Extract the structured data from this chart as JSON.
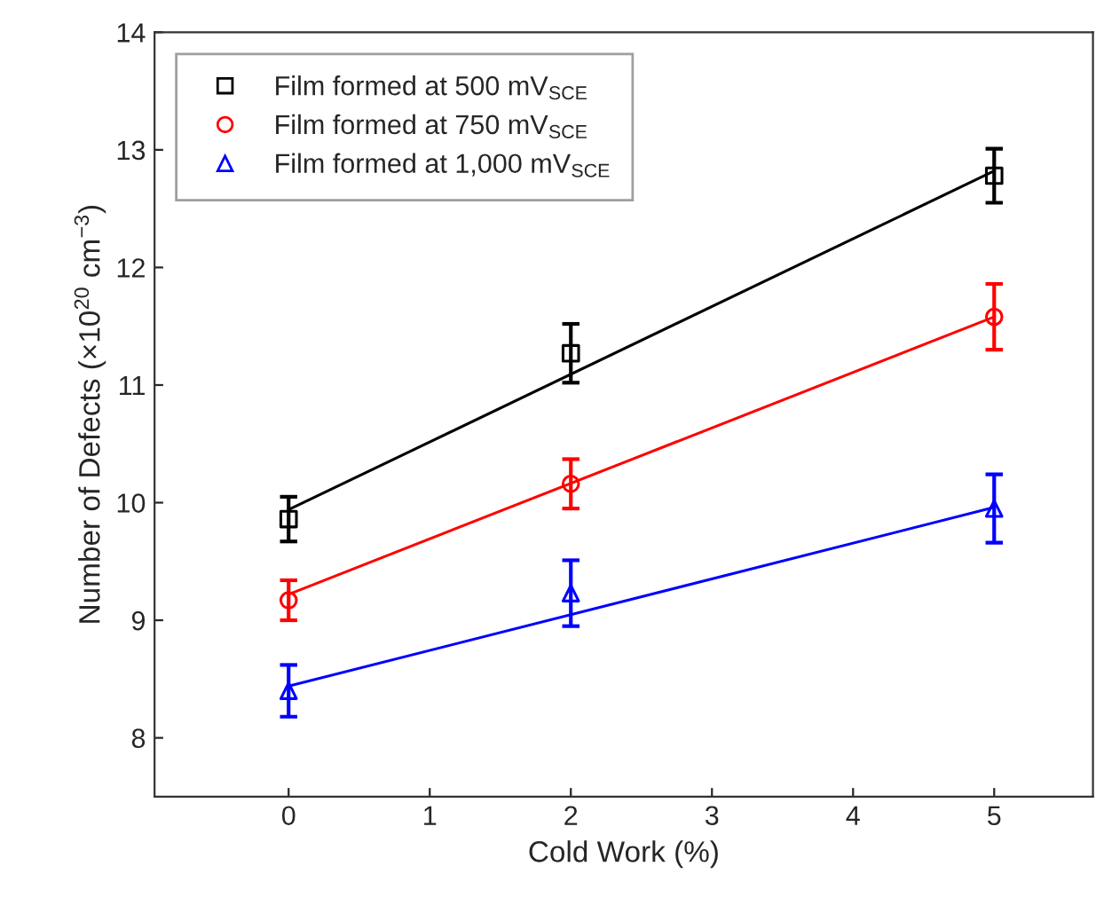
{
  "chart_data": {
    "type": "scatter",
    "xlabel": "Cold Work (%)",
    "ylabel": "Number of Defects (×10$^{20}$ cm$^{−3}$)",
    "xlim": [
      -0.95,
      5.7
    ],
    "xticks": [
      0,
      1,
      2,
      3,
      4,
      5
    ],
    "ylim": [
      7.5,
      14
    ],
    "yticks": [
      8,
      9,
      10,
      11,
      12,
      13,
      14
    ],
    "grid": false,
    "legend": "top left",
    "series": [
      {
        "name": "Film formed at 500 mV$_{SCE}$",
        "marker": "square",
        "color": "#000000",
        "x": [
          0,
          2,
          5
        ],
        "values": [
          9.86,
          11.27,
          12.78
        ],
        "errors": [
          0.19,
          0.25,
          0.23
        ]
      },
      {
        "name": "Film formed at 750 mV$_{SCE}$",
        "marker": "circle",
        "color": "#ff0000",
        "x": [
          0,
          2,
          5
        ],
        "values": [
          9.17,
          10.16,
          11.58
        ],
        "errors": [
          0.17,
          0.21,
          0.28
        ]
      },
      {
        "name": "Film formed at 1,000 mV$_{SCE}$",
        "marker": "triangle",
        "color": "#0000ff",
        "x": [
          0,
          2,
          5
        ],
        "values": [
          8.4,
          9.23,
          9.95
        ],
        "errors": [
          0.22,
          0.28,
          0.29
        ]
      },
      {
        "type": "line",
        "color": "#000000",
        "x": [
          0,
          5
        ],
        "values": [
          9.94,
          12.82
        ]
      },
      {
        "type": "line",
        "color": "#ff0000",
        "x": [
          0,
          5
        ],
        "values": [
          9.22,
          11.58
        ]
      },
      {
        "type": "line",
        "color": "#0000ff",
        "x": [
          0,
          5
        ],
        "values": [
          8.44,
          9.96
        ]
      }
    ]
  }
}
